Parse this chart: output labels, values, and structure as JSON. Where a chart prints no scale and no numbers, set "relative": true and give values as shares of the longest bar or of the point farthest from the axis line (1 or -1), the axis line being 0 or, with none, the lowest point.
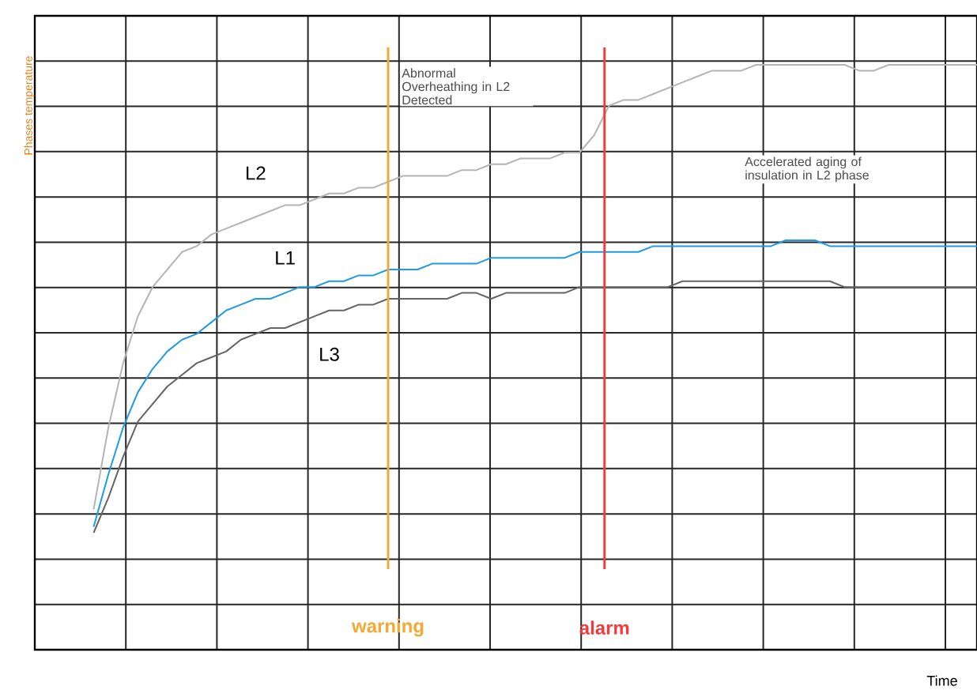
{
  "chart_data": {
    "type": "line",
    "relative": true,
    "xlabel": "Time",
    "ylabel": "Phases temperature",
    "categories": [
      null,
      null,
      null,
      null,
      null,
      null,
      null,
      null,
      null,
      null,
      null,
      null,
      null,
      null,
      null,
      null,
      null,
      null,
      null,
      null,
      null,
      null,
      null,
      null,
      null,
      null,
      null,
      null,
      null,
      null,
      null,
      null,
      null,
      null,
      null,
      null,
      null,
      null,
      null,
      null,
      null,
      null,
      null,
      null,
      null,
      null,
      null,
      null,
      null,
      null,
      null,
      null,
      null,
      null,
      null,
      null,
      null,
      null,
      null,
      null,
      null,
      null,
      null,
      null,
      null
    ],
    "series": [
      {
        "name": "L1",
        "color": "#1e9be6",
        "values": [
          null,
          null,
          null,
          null,
          0.21,
          0.3,
          0.38,
          0.44,
          0.48,
          0.51,
          0.53,
          0.54,
          0.56,
          0.58,
          0.59,
          0.6,
          0.6,
          0.61,
          0.62,
          0.62,
          0.63,
          0.63,
          0.64,
          0.64,
          0.65,
          0.65,
          0.65,
          0.66,
          0.66,
          0.66,
          0.66,
          0.67,
          0.67,
          0.67,
          0.67,
          0.67,
          0.67,
          0.68,
          0.68,
          0.68,
          0.68,
          0.68,
          0.69,
          0.69,
          0.69,
          0.69,
          0.69,
          0.69,
          0.69,
          0.69,
          0.69,
          0.7,
          0.7,
          0.7,
          0.69,
          0.69,
          0.69,
          0.69,
          0.69,
          0.69,
          0.69,
          0.69,
          0.69,
          0.69,
          0.69
        ]
      },
      {
        "name": "L2",
        "color": "#b4b4b4",
        "values": [
          null,
          null,
          null,
          null,
          0.24,
          0.38,
          0.49,
          0.57,
          0.62,
          0.65,
          0.68,
          0.69,
          0.71,
          0.72,
          0.73,
          0.74,
          0.75,
          0.76,
          0.76,
          0.77,
          0.78,
          0.78,
          0.79,
          0.79,
          0.8,
          0.81,
          0.81,
          0.81,
          0.81,
          0.82,
          0.82,
          0.83,
          0.83,
          0.84,
          0.84,
          0.84,
          0.85,
          0.85,
          0.88,
          0.93,
          0.94,
          0.94,
          0.95,
          0.96,
          0.97,
          0.98,
          0.99,
          0.99,
          0.99,
          1,
          1,
          1,
          1,
          1,
          1,
          1,
          0.99,
          0.99,
          1,
          1,
          1,
          1,
          1,
          1,
          1
        ]
      },
      {
        "name": "L3",
        "color": "#646464",
        "values": [
          null,
          null,
          null,
          null,
          0.2,
          0.26,
          0.33,
          0.39,
          0.42,
          0.45,
          0.47,
          0.49,
          0.5,
          0.51,
          0.53,
          0.54,
          0.55,
          0.55,
          0.56,
          0.57,
          0.58,
          0.58,
          0.59,
          0.59,
          0.6,
          0.6,
          0.6,
          0.6,
          0.6,
          0.61,
          0.61,
          0.6,
          0.61,
          0.61,
          0.61,
          0.61,
          0.61,
          0.62,
          0.62,
          0.62,
          0.62,
          0.62,
          0.62,
          0.62,
          0.63,
          0.63,
          0.63,
          0.63,
          0.63,
          0.63,
          0.63,
          0.63,
          0.63,
          0.63,
          0.63,
          0.62,
          0.62,
          0.62,
          0.62,
          0.62,
          0.62,
          0.62,
          0.62,
          0.62,
          0.62
        ]
      }
    ],
    "annotations": [
      "Abnormal Overheathing in L2 Detected",
      "Accelerated aging of insulation in L2 phase",
      "warning",
      "alarm"
    ],
    "grid": true
  }
}
